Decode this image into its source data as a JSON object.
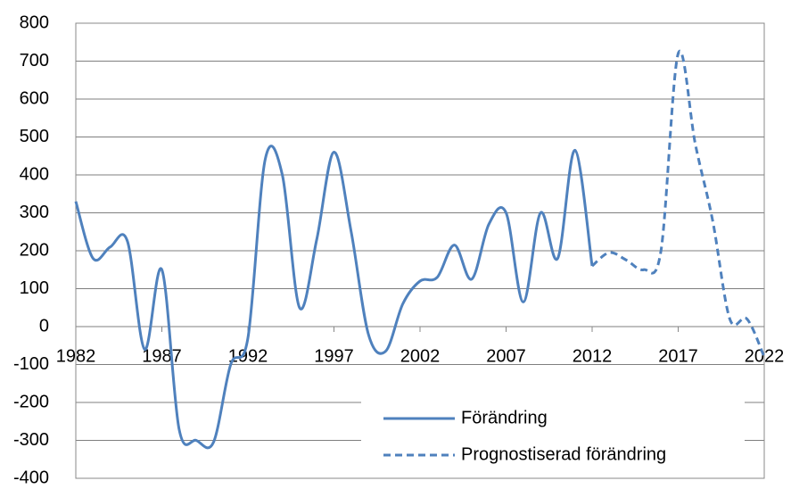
{
  "chart_data": {
    "type": "line",
    "x": [
      1982,
      1983,
      1984,
      1985,
      1986,
      1987,
      1988,
      1989,
      1990,
      1991,
      1992,
      1993,
      1994,
      1995,
      1996,
      1997,
      1998,
      1999,
      2000,
      2001,
      2002,
      2003,
      2004,
      2005,
      2006,
      2007,
      2008,
      2009,
      2010,
      2011,
      2012,
      2013,
      2014,
      2015,
      2016,
      2017,
      2018,
      2019,
      2020,
      2021,
      2022
    ],
    "series": [
      {
        "name": "Förändring",
        "color": "#4f81bd",
        "dash": false,
        "values": [
          330,
          180,
          210,
          225,
          -60,
          150,
          -270,
          -300,
          -305,
          -100,
          -30,
          440,
          400,
          50,
          230,
          460,
          250,
          -20,
          -65,
          60,
          120,
          130,
          215,
          125,
          270,
          300,
          65,
          300,
          180,
          465,
          160,
          null,
          null,
          null,
          null,
          null,
          null,
          null,
          null,
          null,
          null
        ]
      },
      {
        "name": "Prognostiserad förändring",
        "color": "#4f81bd",
        "dash": true,
        "values": [
          null,
          null,
          null,
          null,
          null,
          null,
          null,
          null,
          null,
          null,
          null,
          null,
          null,
          null,
          null,
          null,
          null,
          null,
          null,
          null,
          null,
          null,
          null,
          null,
          null,
          null,
          null,
          null,
          null,
          null,
          160,
          195,
          175,
          150,
          200,
          720,
          480,
          280,
          20,
          20,
          -80
        ]
      }
    ],
    "xlim": [
      1982,
      2022
    ],
    "xticks": [
      1982,
      1987,
      1992,
      1997,
      2002,
      2007,
      2012,
      2017,
      2022
    ],
    "ylim": [
      -400,
      800
    ],
    "yticks": [
      -400,
      -300,
      -200,
      -100,
      0,
      100,
      200,
      300,
      400,
      500,
      600,
      700,
      800
    ],
    "grid": true,
    "legend": "lower right"
  }
}
